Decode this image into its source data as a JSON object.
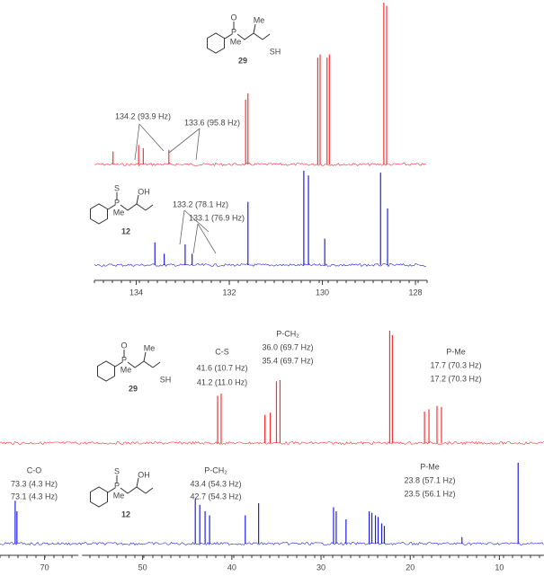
{
  "chart_data": [
    {
      "type": "spectrum",
      "xlim": [
        134.9,
        127.75
      ],
      "xticks": [
        134,
        132,
        130,
        128
      ],
      "series": [
        {
          "color": "#ff3030",
          "x": [
            134.5,
            133.95,
            133.85,
            133.3,
            131.65,
            131.6,
            130.1,
            130.05,
            129.9,
            129.85,
            128.68,
            128.62
          ],
          "values": [
            8,
            12,
            10,
            9,
            40,
            44,
            66,
            68,
            66,
            68,
            100,
            98
          ]
        },
        {
          "color": "#2020e0",
          "x": [
            133.6,
            133.4,
            132.95,
            132.8,
            131.6,
            130.4,
            130.3,
            129.95,
            128.75,
            128.6
          ],
          "values": [
            24,
            12,
            22,
            12,
            67,
            100,
            95,
            28,
            98,
            60
          ]
        }
      ],
      "annotations": [
        {
          "row": 0,
          "text": "134.2 (93.9 Hz)"
        },
        {
          "row": 0,
          "text": "133.6 (95.8 Hz)"
        },
        {
          "row": 1,
          "text": "133.2 (78.1 Hz)"
        },
        {
          "row": 1,
          "text": "133.1 (76.9 Hz)"
        }
      ]
    },
    {
      "type": "spectrum",
      "xlim": [
        75,
        5
      ],
      "xbreak": [
        66,
        57
      ],
      "xticks": [
        70,
        50,
        40,
        30,
        20,
        10
      ],
      "series": [
        {
          "color": "#ff3030",
          "x": [
            41.6,
            41.2,
            36.3,
            35.7,
            35.0,
            34.6,
            22.3,
            22.0,
            18.4,
            17.9,
            17.0,
            16.5
          ],
          "values": [
            42,
            44,
            25,
            27,
            55,
            56,
            100,
            96,
            28,
            30,
            33,
            32
          ]
        },
        {
          "color": "#2020e0",
          "x": [
            73.3,
            73.1,
            44.1,
            43.6,
            43.0,
            42.5,
            38.5,
            37.0,
            28.6,
            28.3,
            27.2,
            24.6,
            24.3,
            23.9,
            23.6,
            23.2,
            22.9,
            14.2,
            7.9
          ],
          "values": [
            53,
            40,
            55,
            48,
            40,
            35,
            35,
            50,
            45,
            40,
            30,
            40,
            38,
            35,
            33,
            25,
            22,
            8,
            100
          ]
        }
      ],
      "annotations": [
        {
          "row": 0,
          "text": "C-S"
        },
        {
          "row": 0,
          "text": "41.6 (10.7 Hz)"
        },
        {
          "row": 0,
          "text": "41.2 (11.0 Hz)"
        },
        {
          "row": 0,
          "text": "P-CH₂"
        },
        {
          "row": 0,
          "text": "36.0 (69.7 Hz)"
        },
        {
          "row": 0,
          "text": "35.4 (69.7 Hz)"
        },
        {
          "row": 0,
          "text": "P-Me"
        },
        {
          "row": 0,
          "text": "17.7 (70.3 Hz)"
        },
        {
          "row": 0,
          "text": "17.2 (70.3 Hz)"
        },
        {
          "row": 1,
          "text": "C-O"
        },
        {
          "row": 1,
          "text": "73.3 (4.3 Hz)"
        },
        {
          "row": 1,
          "text": "73.1 (4.3 Hz)"
        },
        {
          "row": 1,
          "text": "P-CH₂"
        },
        {
          "row": 1,
          "text": "43.4 (54.3 Hz)"
        },
        {
          "row": 1,
          "text": "42.7 (54.3 Hz)"
        },
        {
          "row": 1,
          "text": "P-Me"
        },
        {
          "row": 1,
          "text": "23.8 (57.1 Hz)"
        },
        {
          "row": 1,
          "text": "23.5 (56.1 Hz)"
        }
      ]
    }
  ],
  "structures": [
    {
      "label": "29",
      "atoms": [
        "O",
        "P",
        "Me",
        "Me",
        "SH"
      ]
    },
    {
      "label": "12",
      "atoms": [
        "S",
        "P",
        "Me",
        "OH"
      ]
    },
    {
      "label": "29",
      "atoms": [
        "O",
        "P",
        "Me",
        "Me",
        "SH"
      ]
    },
    {
      "label": "12",
      "atoms": [
        "S",
        "P",
        "Me",
        "OH"
      ]
    }
  ]
}
